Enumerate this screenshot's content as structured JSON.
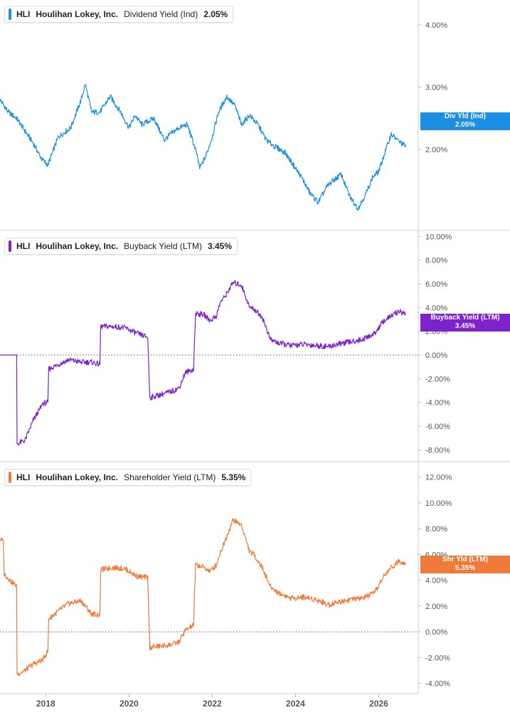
{
  "chart_data": [
    {
      "type": "line",
      "ticker": "HLI",
      "company": "Houlihan Lokey, Inc.",
      "metric": "Dividend Yield (Ind)",
      "current_value": "2.05%",
      "color": "#1a8fe3",
      "flag_label": "Div Yld (Ind)",
      "flag_value": "2.05%",
      "ylim": [
        0.7,
        4.4
      ],
      "yticks": [
        2.0,
        3.0,
        4.0
      ],
      "ytick_labels": [
        "2.00%",
        "3.00%",
        "4.00%"
      ],
      "zero_line": false,
      "series": [
        {
          "x": [
            2016.9,
            2017.1,
            2017.3,
            2017.5,
            2017.7,
            2017.9,
            2018.05,
            2018.3,
            2018.6,
            2018.85,
            2018.95,
            2019.1,
            2019.3,
            2019.55,
            2019.8,
            2020.0,
            2020.15,
            2020.3,
            2020.6,
            2020.85,
            2021.0,
            2021.2,
            2021.4,
            2021.6,
            2021.7,
            2021.85,
            2022.0,
            2022.15,
            2022.35,
            2022.55,
            2022.7,
            2022.9,
            2023.1,
            2023.3,
            2023.5,
            2023.75,
            2023.95,
            2024.15,
            2024.35,
            2024.55,
            2024.75,
            2024.9,
            2025.1,
            2025.3,
            2025.5,
            2025.7,
            2025.85,
            2026.0,
            2026.15,
            2026.3,
            2026.45,
            2026.65
          ],
          "y": [
            2.8,
            2.6,
            2.5,
            2.3,
            2.1,
            1.85,
            1.75,
            2.2,
            2.35,
            2.8,
            3.05,
            2.6,
            2.6,
            2.85,
            2.6,
            2.35,
            2.55,
            2.4,
            2.5,
            2.15,
            2.25,
            2.35,
            2.4,
            2.0,
            1.7,
            1.9,
            2.2,
            2.6,
            2.85,
            2.7,
            2.4,
            2.55,
            2.4,
            2.15,
            2.05,
            1.95,
            1.75,
            1.55,
            1.3,
            1.15,
            1.4,
            1.5,
            1.6,
            1.25,
            1.05,
            1.3,
            1.55,
            1.65,
            1.95,
            2.25,
            2.15,
            2.05
          ]
        }
      ]
    },
    {
      "type": "line",
      "ticker": "HLI",
      "company": "Houlihan Lokey, Inc.",
      "metric": "Buyback Yield (LTM)",
      "current_value": "3.45%",
      "color": "#7e22ce",
      "flag_label": "Buyback Yield (LTM)",
      "flag_value": "3.45%",
      "ylim": [
        -9.0,
        10.5
      ],
      "yticks": [
        -8,
        -6,
        -4,
        -2,
        0,
        2,
        4,
        6,
        8,
        10
      ],
      "ytick_labels": [
        "-8.00%",
        "-6.00%",
        "-4.00%",
        "-2.00%",
        "0.00%",
        "2.00%",
        "4.00%",
        "6.00%",
        "8.00%",
        "10.00%"
      ],
      "zero_line": true,
      "series": [
        {
          "x": [
            2016.9,
            2017.3,
            2017.31,
            2017.5,
            2017.7,
            2017.9,
            2017.92,
            2018.05,
            2018.07,
            2018.3,
            2018.55,
            2018.85,
            2019.1,
            2019.3,
            2019.32,
            2019.6,
            2019.9,
            2020.2,
            2020.45,
            2020.5,
            2020.8,
            2021.0,
            2021.2,
            2021.35,
            2021.55,
            2021.6,
            2021.8,
            2021.95,
            2022.1,
            2022.2,
            2022.3,
            2022.5,
            2022.7,
            2022.9,
            2023.0,
            2023.2,
            2023.4,
            2023.6,
            2023.9,
            2024.2,
            2024.5,
            2024.8,
            2025.0,
            2025.3,
            2025.6,
            2025.9,
            2026.1,
            2026.3,
            2026.5,
            2026.65
          ],
          "y": [
            0,
            0,
            -7.5,
            -7.2,
            -5.5,
            -4.3,
            -4.1,
            -4.0,
            -1.2,
            -0.8,
            -0.4,
            -0.6,
            -0.6,
            -0.8,
            2.4,
            2.4,
            2.3,
            1.8,
            1.5,
            -3.6,
            -3.3,
            -3.1,
            -2.8,
            -1.5,
            -1.2,
            3.5,
            3.4,
            2.9,
            3.3,
            4.5,
            4.9,
            6.1,
            5.9,
            4.0,
            3.9,
            3.2,
            1.3,
            1.0,
            0.8,
            0.9,
            0.8,
            0.7,
            0.9,
            1.1,
            1.3,
            1.8,
            2.8,
            3.3,
            3.7,
            3.45
          ]
        }
      ]
    },
    {
      "type": "line",
      "ticker": "HLI",
      "company": "Houlihan Lokey, Inc.",
      "metric": "Shareholder Yield (LTM)",
      "current_value": "5.35%",
      "color": "#f07a3a",
      "flag_label": "Shr Yld (LTM)",
      "flag_value": "5.35%",
      "ylim": [
        -4.8,
        13.2
      ],
      "yticks": [
        -4,
        -2,
        0,
        2,
        4,
        6,
        8,
        10,
        12
      ],
      "ytick_labels": [
        "-4.00%",
        "-2.00%",
        "0.00%",
        "2.00%",
        "4.00%",
        "6.00%",
        "8.00%",
        "10.00%",
        "12.00%"
      ],
      "zero_line": true,
      "series": [
        {
          "x": [
            2016.9,
            2016.98,
            2017.0,
            2017.2,
            2017.3,
            2017.31,
            2017.5,
            2017.7,
            2017.92,
            2018.05,
            2018.07,
            2018.3,
            2018.55,
            2018.85,
            2019.1,
            2019.3,
            2019.32,
            2019.6,
            2019.9,
            2020.2,
            2020.45,
            2020.5,
            2020.8,
            2021.0,
            2021.2,
            2021.35,
            2021.55,
            2021.6,
            2021.8,
            2021.95,
            2022.1,
            2022.2,
            2022.3,
            2022.5,
            2022.7,
            2022.9,
            2023.0,
            2023.2,
            2023.4,
            2023.6,
            2023.9,
            2024.2,
            2024.5,
            2024.8,
            2025.0,
            2025.3,
            2025.6,
            2025.9,
            2026.1,
            2026.3,
            2026.5,
            2026.65
          ],
          "y": [
            7.2,
            7.0,
            4.5,
            3.8,
            3.6,
            -3.3,
            -3.0,
            -2.5,
            -2.2,
            -1.5,
            1.0,
            1.6,
            2.2,
            2.4,
            1.4,
            1.3,
            4.8,
            5.0,
            4.9,
            4.3,
            4.2,
            -1.2,
            -1.1,
            -1.0,
            -0.8,
            0.1,
            0.5,
            5.2,
            5.0,
            4.7,
            5.2,
            6.2,
            7.0,
            8.7,
            8.3,
            6.2,
            6.0,
            5.0,
            3.5,
            3.0,
            2.6,
            2.7,
            2.5,
            2.1,
            2.3,
            2.5,
            2.6,
            3.0,
            4.2,
            5.0,
            5.5,
            5.35
          ]
        }
      ]
    }
  ],
  "x_axis": {
    "xlim": [
      2016.9,
      2026.95
    ],
    "ticks": [
      2018,
      2020,
      2022,
      2024,
      2026
    ],
    "tick_labels": [
      "2018",
      "2020",
      "2022",
      "2024",
      "2026"
    ]
  }
}
